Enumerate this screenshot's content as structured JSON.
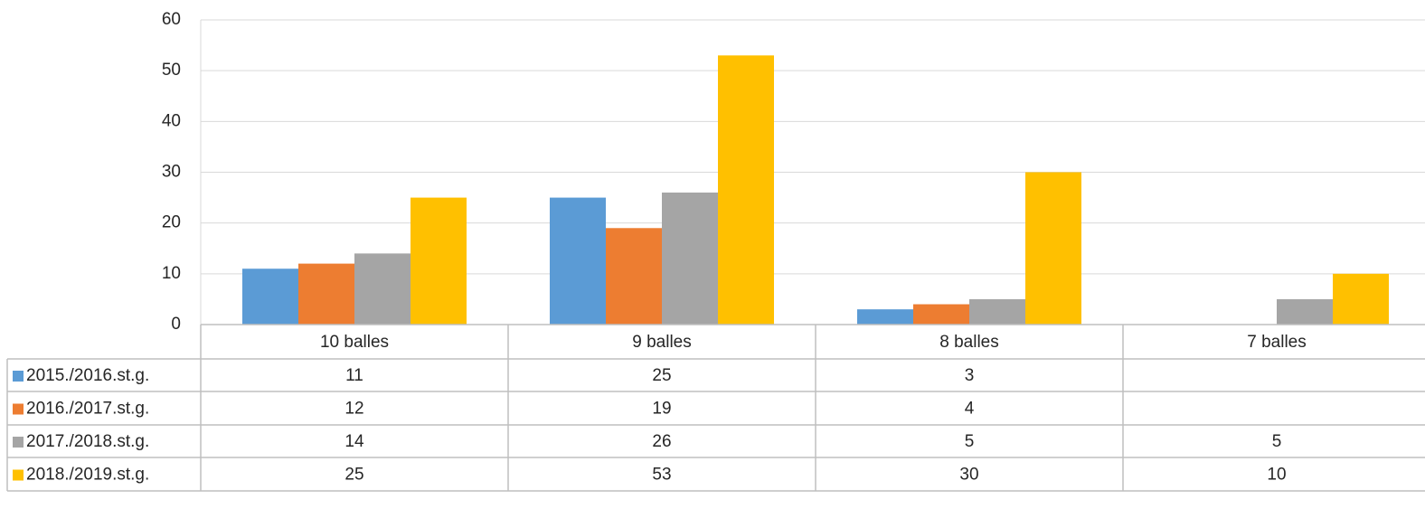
{
  "chart_data": {
    "type": "bar",
    "categories": [
      "10 balles",
      "9 balles",
      "8 balles",
      "7 balles"
    ],
    "series": [
      {
        "name": "2015./2016.st.g.",
        "color": "#5b9bd5",
        "values": [
          11,
          25,
          3,
          null
        ]
      },
      {
        "name": "2016./2017.st.g.",
        "color": "#ed7d31",
        "values": [
          12,
          19,
          4,
          null
        ]
      },
      {
        "name": "2017./2018.st.g.",
        "color": "#a5a5a5",
        "values": [
          14,
          26,
          5,
          5
        ]
      },
      {
        "name": "2018./2019.st.g.",
        "color": "#ffc000",
        "values": [
          25,
          53,
          30,
          10
        ]
      }
    ],
    "ylim": [
      0,
      60
    ],
    "yticks": [
      0,
      10,
      20,
      30,
      40,
      50,
      60
    ],
    "grid": true,
    "data_table": true
  }
}
